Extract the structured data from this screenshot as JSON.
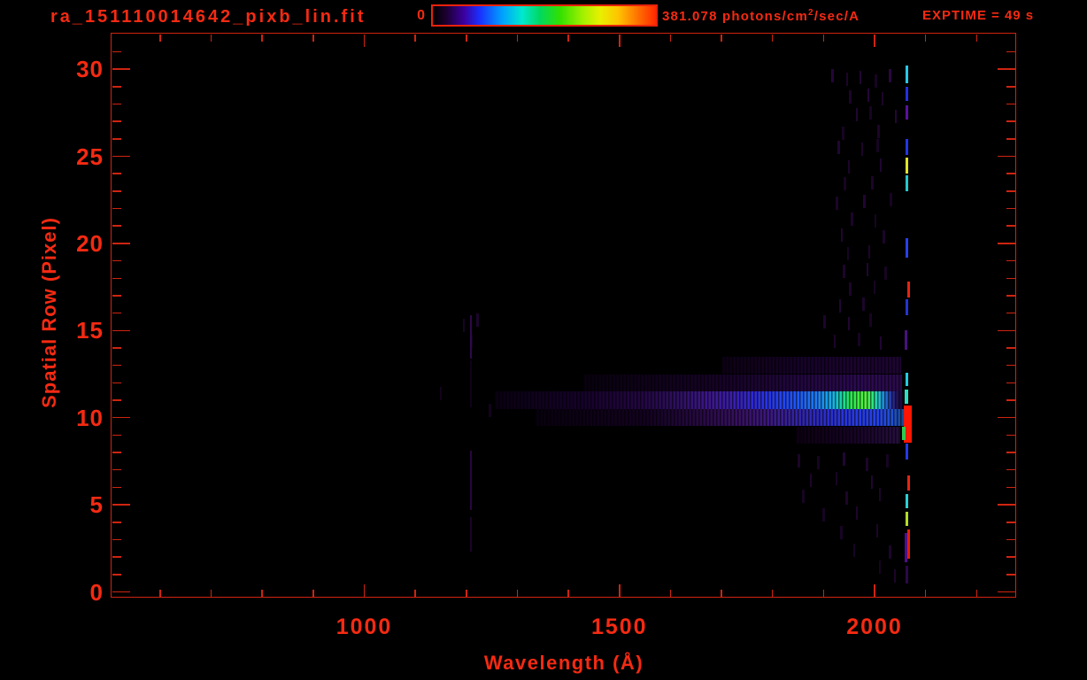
{
  "header": {
    "title": "ra_151110014642_pixb_lin.fit",
    "exptime_label": "EXPTIME = 49 s",
    "colorbar": {
      "min_label": "0",
      "max_value": "381.078",
      "units_pre": " photons/cm",
      "units_sup": "2",
      "units_post": "/sec/A",
      "stops": [
        [
          0,
          "#000000"
        ],
        [
          0.06,
          "#1c0030"
        ],
        [
          0.14,
          "#3c00a0"
        ],
        [
          0.21,
          "#1a30ff"
        ],
        [
          0.31,
          "#00a0ff"
        ],
        [
          0.4,
          "#00e8d0"
        ],
        [
          0.48,
          "#00d860"
        ],
        [
          0.57,
          "#32e000"
        ],
        [
          0.67,
          "#a0f000"
        ],
        [
          0.75,
          "#e8f000"
        ],
        [
          0.83,
          "#ffc400"
        ],
        [
          0.92,
          "#ff7000"
        ],
        [
          1,
          "#ff2800"
        ]
      ]
    }
  },
  "chart_data": {
    "type": "heatmap",
    "title": "ra_151110014642_pixb_lin.fit",
    "xlabel": "Wavelength (Å)",
    "ylabel": "Spatial Row (Pixel)",
    "xlim": [
      503,
      2277
    ],
    "ylim": [
      0,
      32
    ],
    "x_major_ticks": [
      1000,
      1500,
      2000
    ],
    "x_minor_step": 100,
    "y_major_ticks": [
      0,
      5,
      10,
      15,
      20,
      25,
      30
    ],
    "y_minor_step": 1,
    "colorbar_range": [
      0,
      381.078
    ],
    "colorbar_units": "photons/cm²/sec/A",
    "exptime_s": 49,
    "spectral_bands": [
      {
        "row": 13,
        "lam1": 1700,
        "lam2": 2052,
        "opacity": 0.9,
        "stops": [
          [
            0,
            "#0e0216"
          ],
          [
            0.5,
            "#1a0430"
          ],
          [
            1,
            "#220638"
          ]
        ]
      },
      {
        "row": 12,
        "lam1": 1430,
        "lam2": 2054,
        "opacity": 1,
        "stops": [
          [
            0,
            "#08010e"
          ],
          [
            0.45,
            "#170328"
          ],
          [
            0.7,
            "#230742"
          ],
          [
            0.88,
            "#2c0a52"
          ],
          [
            1,
            "#2a0a4c"
          ]
        ]
      },
      {
        "row": 11,
        "lam1": 1255,
        "lam2": 2056,
        "opacity": 1,
        "stops": [
          [
            0,
            "#0a0112"
          ],
          [
            0.2,
            "#150228"
          ],
          [
            0.35,
            "#220640"
          ],
          [
            0.45,
            "#2e1060"
          ],
          [
            0.52,
            "#3c1688"
          ],
          [
            0.58,
            "#3a1ea8"
          ],
          [
            0.63,
            "#3028d0"
          ],
          [
            0.68,
            "#2838e8"
          ],
          [
            0.74,
            "#2055f5"
          ],
          [
            0.79,
            "#1e7cf0"
          ],
          [
            0.83,
            "#14b4e8"
          ],
          [
            0.855,
            "#18dc90"
          ],
          [
            0.875,
            "#2ae84c"
          ],
          [
            0.91,
            "#55f23c"
          ],
          [
            0.925,
            "#30e878"
          ],
          [
            0.94,
            "#1cc8d0"
          ],
          [
            0.955,
            "#2080e0"
          ],
          [
            0.97,
            "#2838a8"
          ],
          [
            0.985,
            "#241460"
          ],
          [
            1,
            "#1a0530"
          ]
        ]
      },
      {
        "row": 10,
        "lam1": 1335,
        "lam2": 2057,
        "opacity": 1,
        "stops": [
          [
            0,
            "#08010e"
          ],
          [
            0.3,
            "#130220"
          ],
          [
            0.45,
            "#280a44"
          ],
          [
            0.55,
            "#36105e"
          ],
          [
            0.63,
            "#3c187e"
          ],
          [
            0.7,
            "#34229e"
          ],
          [
            0.78,
            "#2c2cc6"
          ],
          [
            0.86,
            "#2838e0"
          ],
          [
            0.93,
            "#2542e8"
          ],
          [
            0.97,
            "#2050cc"
          ],
          [
            1,
            "#184890"
          ]
        ]
      },
      {
        "row": 9,
        "lam1": 1845,
        "lam2": 2050,
        "opacity": 0.95,
        "stops": [
          [
            0,
            "#0c0212"
          ],
          [
            0.5,
            "#180426"
          ],
          [
            0.8,
            "#200a36"
          ],
          [
            1,
            "#281044"
          ]
        ]
      }
    ],
    "emission_line": {
      "wavelength": 2064,
      "segments": [
        {
          "r1": 29.2,
          "r2": 30.2,
          "color": "#26c8e8"
        },
        {
          "r1": 28.2,
          "r2": 29.0,
          "color": "#2430e0"
        },
        {
          "r1": 27.1,
          "r2": 27.9,
          "color": "#5a10a0"
        },
        {
          "r1": 25.1,
          "r2": 26.0,
          "color": "#2236e4"
        },
        {
          "r1": 24.0,
          "r2": 24.9,
          "color": "#e0e428"
        },
        {
          "r1": 23.0,
          "r2": 23.9,
          "color": "#24c8cc"
        },
        {
          "r1": 19.2,
          "r2": 20.3,
          "color": "#2840ea"
        },
        {
          "r1": 16.9,
          "r2": 17.8,
          "color": "#e62410",
          "lam": 2066
        },
        {
          "r1": 15.9,
          "r2": 16.8,
          "color": "#2434d0"
        },
        {
          "r1": 13.9,
          "r2": 15.0,
          "color": "#48127e",
          "lam": 2062
        },
        {
          "r1": 11.8,
          "r2": 12.6,
          "color": "#22cce0"
        },
        {
          "r1": 10.8,
          "r2": 11.6,
          "color": "#2ae0c4",
          "lam": 2062,
          "w": 4
        },
        {
          "r1": 8.55,
          "r2": 10.7,
          "color": "#ff1602",
          "lam": 2065,
          "w": 9
        },
        {
          "r1": 8.7,
          "r2": 9.5,
          "color": "#30c850",
          "lam": 2057,
          "w": 4
        },
        {
          "r1": 7.6,
          "r2": 8.5,
          "color": "#2438e8"
        },
        {
          "r1": 5.8,
          "r2": 6.7,
          "color": "#e42512",
          "lam": 2066
        },
        {
          "r1": 4.8,
          "r2": 5.6,
          "color": "#2ad0d4"
        },
        {
          "r1": 3.8,
          "r2": 4.6,
          "color": "#b4dc24"
        },
        {
          "r1": 1.9,
          "r2": 3.6,
          "color": "#e41e06",
          "lam": 2066
        },
        {
          "r1": 1.7,
          "r2": 3.4,
          "color": "#500d8c",
          "lam": 2061
        },
        {
          "r1": 0.5,
          "r2": 1.5,
          "color": "#2c0848"
        }
      ]
    },
    "lyman_alpha_line": {
      "wavelength": 1209,
      "segments": [
        {
          "r1": 13.4,
          "r2": 15.9,
          "opacity": 0.95,
          "color": "#30094c"
        },
        {
          "r1": 10.6,
          "r2": 13.3,
          "opacity": 0.5,
          "color": "#1e0432"
        },
        {
          "r1": 4.7,
          "r2": 8.1,
          "opacity": 0.9,
          "color": "#2c0846"
        },
        {
          "r1": 2.3,
          "r2": 4.3,
          "opacity": 0.7,
          "color": "#260638"
        }
      ]
    },
    "background_dashes": [
      [
        1918,
        29.6,
        0.8
      ],
      [
        1946,
        29.4,
        0.6
      ],
      [
        1972,
        29.5,
        0.7
      ],
      [
        2003,
        29.3,
        0.5
      ],
      [
        2030,
        29.6,
        0.9
      ],
      [
        1952,
        28.4,
        0.6
      ],
      [
        1988,
        28.5,
        0.8
      ],
      [
        2016,
        28.3,
        0.6
      ],
      [
        1965,
        27.4,
        0.7
      ],
      [
        1992,
        27.5,
        0.5
      ],
      [
        2042,
        27.3,
        0.8
      ],
      [
        1938,
        26.3,
        0.5
      ],
      [
        2008,
        26.4,
        0.6
      ],
      [
        1930,
        25.5,
        0.7
      ],
      [
        1976,
        25.4,
        0.6
      ],
      [
        2006,
        25.6,
        0.5
      ],
      [
        1950,
        24.4,
        0.6
      ],
      [
        2012,
        24.5,
        0.7
      ],
      [
        1942,
        23.4,
        0.5
      ],
      [
        1996,
        23.5,
        0.6
      ],
      [
        1926,
        22.3,
        0.6
      ],
      [
        1980,
        22.4,
        0.7
      ],
      [
        2032,
        22.5,
        0.5
      ],
      [
        1956,
        21.4,
        0.6
      ],
      [
        2002,
        21.3,
        0.5
      ],
      [
        1936,
        20.5,
        0.7
      ],
      [
        2018,
        20.4,
        0.6
      ],
      [
        1948,
        19.4,
        0.5
      ],
      [
        1990,
        19.5,
        0.6
      ],
      [
        1940,
        18.4,
        0.6
      ],
      [
        1986,
        18.5,
        0.7
      ],
      [
        2022,
        18.3,
        0.5
      ],
      [
        1952,
        17.4,
        0.6
      ],
      [
        2000,
        17.5,
        0.5
      ],
      [
        1932,
        16.4,
        0.7
      ],
      [
        1978,
        16.5,
        0.6
      ],
      [
        1902,
        15.5,
        0.6
      ],
      [
        1950,
        15.4,
        0.7
      ],
      [
        1992,
        15.6,
        0.5
      ],
      [
        1195,
        15.3,
        0.5
      ],
      [
        1222,
        15.6,
        0.6
      ],
      [
        1922,
        14.4,
        0.6
      ],
      [
        1970,
        14.5,
        0.5
      ],
      [
        2012,
        14.3,
        0.7
      ],
      [
        1210,
        14.4,
        0.4
      ],
      [
        1150,
        11.4,
        0.4
      ],
      [
        1246,
        10.4,
        0.4
      ],
      [
        1852,
        7.5,
        0.6
      ],
      [
        1890,
        7.4,
        0.5
      ],
      [
        1940,
        7.6,
        0.7
      ],
      [
        1985,
        7.3,
        0.6
      ],
      [
        2025,
        7.5,
        0.5
      ],
      [
        1875,
        6.4,
        0.6
      ],
      [
        1925,
        6.5,
        0.5
      ],
      [
        1995,
        6.3,
        0.7
      ],
      [
        1860,
        5.5,
        0.5
      ],
      [
        1945,
        5.4,
        0.6
      ],
      [
        2010,
        5.6,
        0.6
      ],
      [
        1900,
        4.4,
        0.5
      ],
      [
        1965,
        4.5,
        0.6
      ],
      [
        1935,
        3.4,
        0.5
      ],
      [
        2005,
        3.5,
        0.6
      ],
      [
        1960,
        2.4,
        0.5
      ],
      [
        2030,
        2.3,
        0.6
      ],
      [
        2010,
        1.4,
        0.5
      ],
      [
        2040,
        0.9,
        0.6
      ]
    ]
  }
}
